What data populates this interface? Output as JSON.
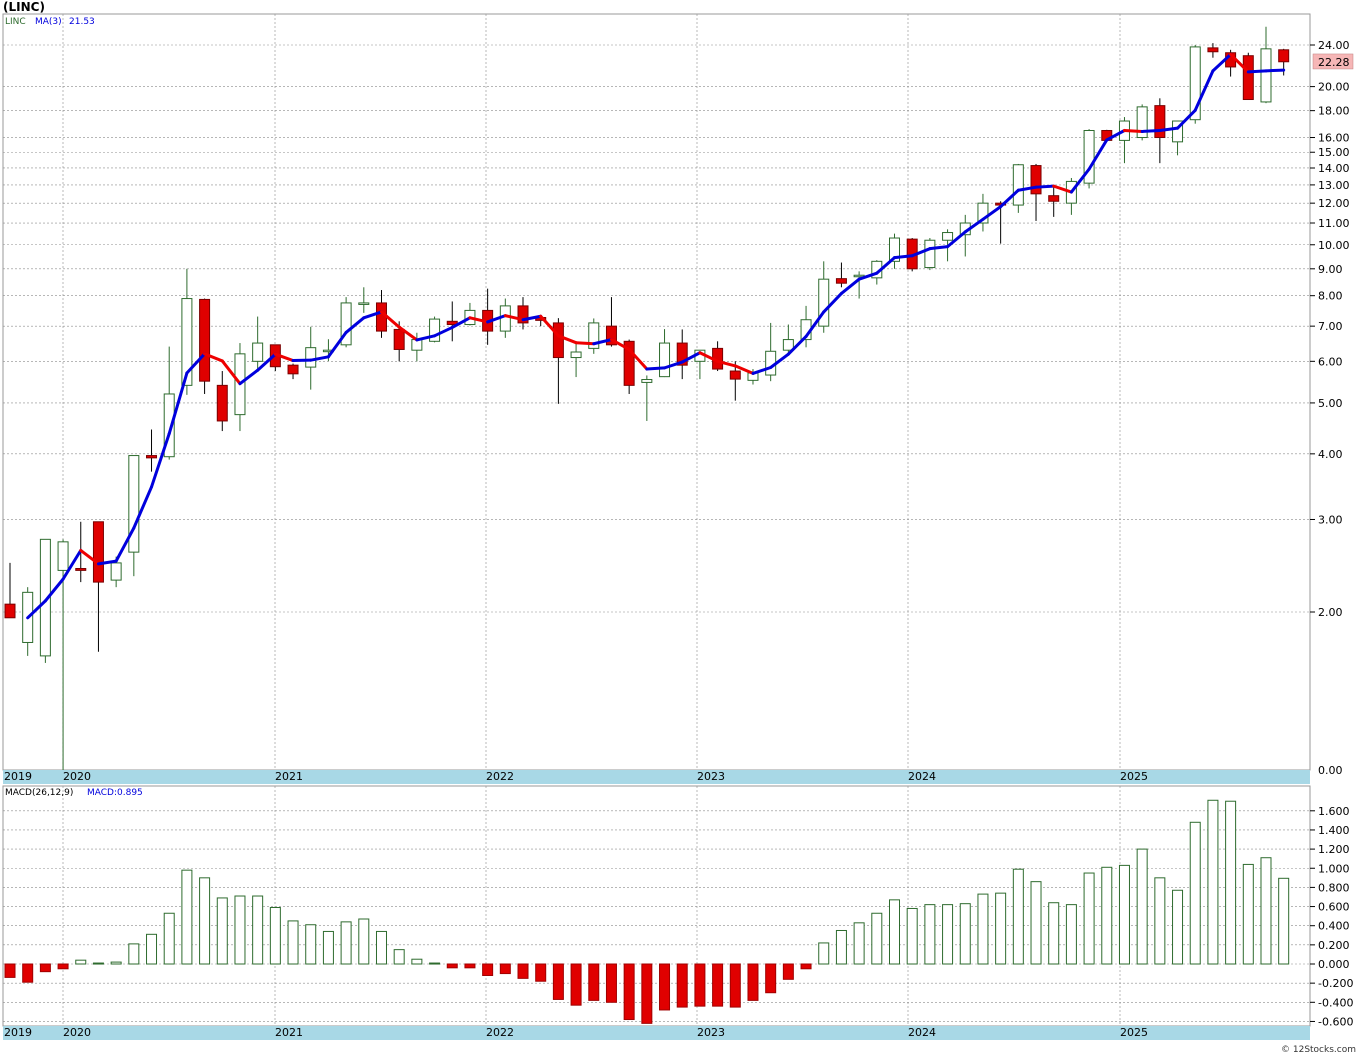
{
  "header": {
    "title": "(LINC)",
    "footer": "© 12Stocks.com"
  },
  "colors": {
    "up_outline": "#2e6b2e",
    "down_fill": "#e00000",
    "ma_up": "#0000dd",
    "ma_down": "#ee0000",
    "axis_bar": "#a8d8e6",
    "grid": "#8c8c8c",
    "last_price_bg": "#f6b6b6"
  },
  "chart_data": [
    {
      "type": "candlestick",
      "legend": {
        "symbol": "LINC",
        "indicator": "MA(3)",
        "indicator_value": "21.53"
      },
      "y_scale": "log",
      "y_ticks": [
        2.0,
        3.0,
        4.0,
        5.0,
        6.0,
        7.0,
        8.0,
        9.0,
        10.0,
        11.0,
        12.0,
        13.0,
        14.0,
        15.0,
        16.0,
        18.0,
        20.0,
        24.0
      ],
      "y_tick_labels": [
        "2.00",
        "3.00",
        "4.00",
        "5.00",
        "6.00",
        "7.00",
        "8.00",
        "9.00",
        "10.00",
        "11.00",
        "12.00",
        "13.00",
        "14.00",
        "15.00",
        "16.00",
        "18.00",
        "20.00",
        "24.00"
      ],
      "y_bottom_label": "0.00",
      "last_price": 22.28,
      "last_price_label": "22.28",
      "year_labels": [
        "2019",
        "2020",
        "2021",
        "2022",
        "2023",
        "2024",
        "2025"
      ],
      "ohlc": [
        [
          2.07,
          2.48,
          1.95,
          1.95
        ],
        [
          1.75,
          2.23,
          1.65,
          2.18
        ],
        [
          1.65,
          2.7,
          1.6,
          2.75
        ],
        [
          2.4,
          2.75,
          1.0,
          2.72
        ],
        [
          2.42,
          2.97,
          2.28,
          2.4
        ],
        [
          2.97,
          2.97,
          1.68,
          2.28
        ],
        [
          2.3,
          2.55,
          2.23,
          2.48
        ],
        [
          2.6,
          3.95,
          2.34,
          3.97
        ],
        [
          3.97,
          4.45,
          3.7,
          3.93
        ],
        [
          3.95,
          6.4,
          3.9,
          5.2
        ],
        [
          5.4,
          9.0,
          5.18,
          7.9
        ],
        [
          7.87,
          7.9,
          5.2,
          5.5
        ],
        [
          5.4,
          5.75,
          4.42,
          4.62
        ],
        [
          4.75,
          6.5,
          4.42,
          6.2
        ],
        [
          6.0,
          7.3,
          5.8,
          6.5
        ],
        [
          6.45,
          6.45,
          5.75,
          5.86
        ],
        [
          5.9,
          5.94,
          5.55,
          5.68
        ],
        [
          5.85,
          6.98,
          5.3,
          6.37
        ],
        [
          6.3,
          6.61,
          6.01,
          6.3
        ],
        [
          6.45,
          7.95,
          6.38,
          7.75
        ],
        [
          7.75,
          8.3,
          7.42,
          7.75
        ],
        [
          7.75,
          8.2,
          6.65,
          6.85
        ],
        [
          6.9,
          7.15,
          6.0,
          6.32
        ],
        [
          6.3,
          6.8,
          6.0,
          6.6
        ],
        [
          6.55,
          7.3,
          6.52,
          7.22
        ],
        [
          7.15,
          7.8,
          6.55,
          7.05
        ],
        [
          7.05,
          7.75,
          7.02,
          7.5
        ],
        [
          7.5,
          8.25,
          6.45,
          6.85
        ],
        [
          6.85,
          7.9,
          6.65,
          7.65
        ],
        [
          7.65,
          7.95,
          6.9,
          7.1
        ],
        [
          7.27,
          7.27,
          7.0,
          7.18
        ],
        [
          7.1,
          7.25,
          4.98,
          6.1
        ],
        [
          6.1,
          6.5,
          5.6,
          6.25
        ],
        [
          6.35,
          7.24,
          6.2,
          7.1
        ],
        [
          7.0,
          7.95,
          6.4,
          6.45
        ],
        [
          6.55,
          6.6,
          5.2,
          5.4
        ],
        [
          5.47,
          5.64,
          4.62,
          5.54
        ],
        [
          5.61,
          6.91,
          5.6,
          6.5
        ],
        [
          6.5,
          6.9,
          5.55,
          5.9
        ],
        [
          6.0,
          6.3,
          5.55,
          6.3
        ],
        [
          6.35,
          6.55,
          5.75,
          5.8
        ],
        [
          5.75,
          6.0,
          5.05,
          5.55
        ],
        [
          5.52,
          5.8,
          5.42,
          5.7
        ],
        [
          5.65,
          7.1,
          5.5,
          6.27
        ],
        [
          6.3,
          7.05,
          6.15,
          6.6
        ],
        [
          6.6,
          7.65,
          6.38,
          7.2
        ],
        [
          7.0,
          9.3,
          6.8,
          8.6
        ],
        [
          8.62,
          9.25,
          8.3,
          8.45
        ],
        [
          8.7,
          8.9,
          7.9,
          8.75
        ],
        [
          8.65,
          9.35,
          8.4,
          9.3
        ],
        [
          9.3,
          10.5,
          9.0,
          10.3
        ],
        [
          10.25,
          10.3,
          8.9,
          9.0
        ],
        [
          9.05,
          10.3,
          8.95,
          10.2
        ],
        [
          10.2,
          10.7,
          9.3,
          10.55
        ],
        [
          10.45,
          11.4,
          9.5,
          11.0
        ],
        [
          11.0,
          12.5,
          10.6,
          12.0
        ],
        [
          12.0,
          12.1,
          10.05,
          11.9
        ],
        [
          11.9,
          14.25,
          11.5,
          14.2
        ],
        [
          14.15,
          14.25,
          11.1,
          12.5
        ],
        [
          12.4,
          13.0,
          11.3,
          12.1
        ],
        [
          12.0,
          13.4,
          11.4,
          13.2
        ],
        [
          13.1,
          16.6,
          12.8,
          16.5
        ],
        [
          16.5,
          16.55,
          15.8,
          15.8
        ],
        [
          15.8,
          17.5,
          14.3,
          17.2
        ],
        [
          16.0,
          18.5,
          15.8,
          18.3
        ],
        [
          18.4,
          19.0,
          14.3,
          16.0
        ],
        [
          15.7,
          17.0,
          14.8,
          17.2
        ],
        [
          17.3,
          24.0,
          17.0,
          23.8
        ],
        [
          23.7,
          24.2,
          22.7,
          23.3
        ],
        [
          23.2,
          23.5,
          20.9,
          21.8
        ],
        [
          22.9,
          23.2,
          18.9,
          18.9
        ],
        [
          18.7,
          26.0,
          18.6,
          23.6
        ],
        [
          23.5,
          23.6,
          21.0,
          22.3
        ]
      ],
      "ma": [
        null,
        1.95,
        2.1,
        2.31,
        2.62,
        2.47,
        2.5,
        2.89,
        3.46,
        4.37,
        5.7,
        6.2,
        6.01,
        5.44,
        5.77,
        6.19,
        6.02,
        6.03,
        6.12,
        6.81,
        7.26,
        7.45,
        6.97,
        6.59,
        6.71,
        6.96,
        7.26,
        7.13,
        7.33,
        7.2,
        7.31,
        6.71,
        6.51,
        6.48,
        6.6,
        6.32,
        5.8,
        5.83,
        5.98,
        6.23,
        6.0,
        5.88,
        5.69,
        5.84,
        6.19,
        6.69,
        7.45,
        8.08,
        8.6,
        8.83,
        9.45,
        9.53,
        9.83,
        9.92,
        10.58,
        11.18,
        11.82,
        12.7,
        12.87,
        12.93,
        12.6,
        13.93,
        15.83,
        16.5,
        16.43,
        16.5,
        16.67,
        18.03,
        21.43,
        23.03,
        21.33,
        21.43,
        21.5
      ]
    },
    {
      "type": "bar",
      "legend": {
        "indicator": "MACD(26,12,9)",
        "label": "MACD:0.895"
      },
      "y_ticks": [
        -0.6,
        -0.4,
        -0.2,
        0.0,
        0.2,
        0.4,
        0.6,
        0.8,
        1.0,
        1.2,
        1.4,
        1.6
      ],
      "y_tick_labels": [
        "-0.600",
        "-0.400",
        "-0.200",
        "0.000",
        "0.200",
        "0.400",
        "0.600",
        "0.800",
        "1.000",
        "1.200",
        "1.400",
        "1.600"
      ],
      "year_labels": [
        "2019",
        "2020",
        "2021",
        "2022",
        "2023",
        "2024",
        "2025"
      ],
      "values": [
        -0.14,
        -0.19,
        -0.08,
        -0.05,
        0.04,
        0.01,
        0.02,
        0.21,
        0.31,
        0.53,
        0.98,
        0.9,
        0.69,
        0.71,
        0.71,
        0.59,
        0.45,
        0.41,
        0.34,
        0.44,
        0.47,
        0.34,
        0.15,
        0.05,
        0.01,
        -0.04,
        -0.04,
        -0.12,
        -0.1,
        -0.15,
        -0.18,
        -0.37,
        -0.43,
        -0.38,
        -0.4,
        -0.58,
        -0.62,
        -0.48,
        -0.45,
        -0.44,
        -0.44,
        -0.45,
        -0.38,
        -0.3,
        -0.16,
        -0.05,
        0.22,
        0.35,
        0.43,
        0.53,
        0.67,
        0.58,
        0.62,
        0.62,
        0.63,
        0.73,
        0.74,
        0.99,
        0.86,
        0.64,
        0.62,
        0.95,
        1.01,
        1.03,
        1.2,
        0.9,
        0.77,
        1.48,
        1.71,
        1.7,
        1.04,
        1.11,
        0.895
      ]
    }
  ]
}
